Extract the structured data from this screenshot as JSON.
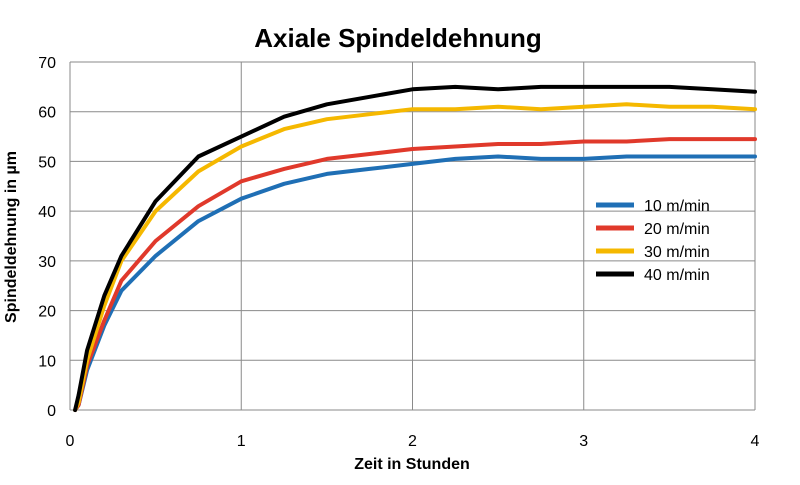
{
  "chart_data": {
    "type": "line",
    "title": "Axiale Spindeldehnung",
    "xlabel": "Zeit in Stunden",
    "ylabel": "Spindeldehnung in µm",
    "xlim": [
      0,
      4
    ],
    "ylim": [
      0,
      70
    ],
    "xticks": [
      "0",
      "1",
      "2",
      "3",
      "4"
    ],
    "yticks": [
      "0",
      "10",
      "20",
      "30",
      "40",
      "50",
      "60",
      "70"
    ],
    "grid": true,
    "legend_position": "right",
    "x": [
      0.03,
      0.05,
      0.1,
      0.2,
      0.3,
      0.5,
      0.75,
      1.0,
      1.25,
      1.5,
      1.75,
      2.0,
      2.25,
      2.5,
      2.75,
      3.0,
      3.25,
      3.5,
      3.75,
      4.0
    ],
    "series": [
      {
        "name": "10 m/min",
        "color": "#1f6fb5",
        "values": [
          0,
          1,
          8,
          17,
          24,
          31,
          38,
          42.5,
          45.5,
          47.5,
          48.5,
          49.5,
          50.5,
          51,
          50.5,
          50.5,
          51,
          51,
          51,
          51
        ]
      },
      {
        "name": "20 m/min",
        "color": "#e0392b",
        "values": [
          0,
          1,
          9,
          18,
          26,
          34,
          41,
          46,
          48.5,
          50.5,
          51.5,
          52.5,
          53,
          53.5,
          53.5,
          54,
          54,
          54.5,
          54.5,
          54.5
        ]
      },
      {
        "name": "30 m/min",
        "color": "#f5b800",
        "values": [
          0,
          1.5,
          10,
          21,
          30,
          40,
          48,
          53,
          56.5,
          58.5,
          59.5,
          60.5,
          60.5,
          61,
          60.5,
          61,
          61.5,
          61,
          61,
          60.5
        ]
      },
      {
        "name": "40 m/min",
        "color": "#000000",
        "values": [
          0,
          3,
          12,
          23,
          31,
          42,
          51,
          55,
          59,
          61.5,
          63,
          64.5,
          65,
          64.5,
          65,
          65,
          65,
          65,
          64.5,
          64
        ]
      }
    ]
  }
}
